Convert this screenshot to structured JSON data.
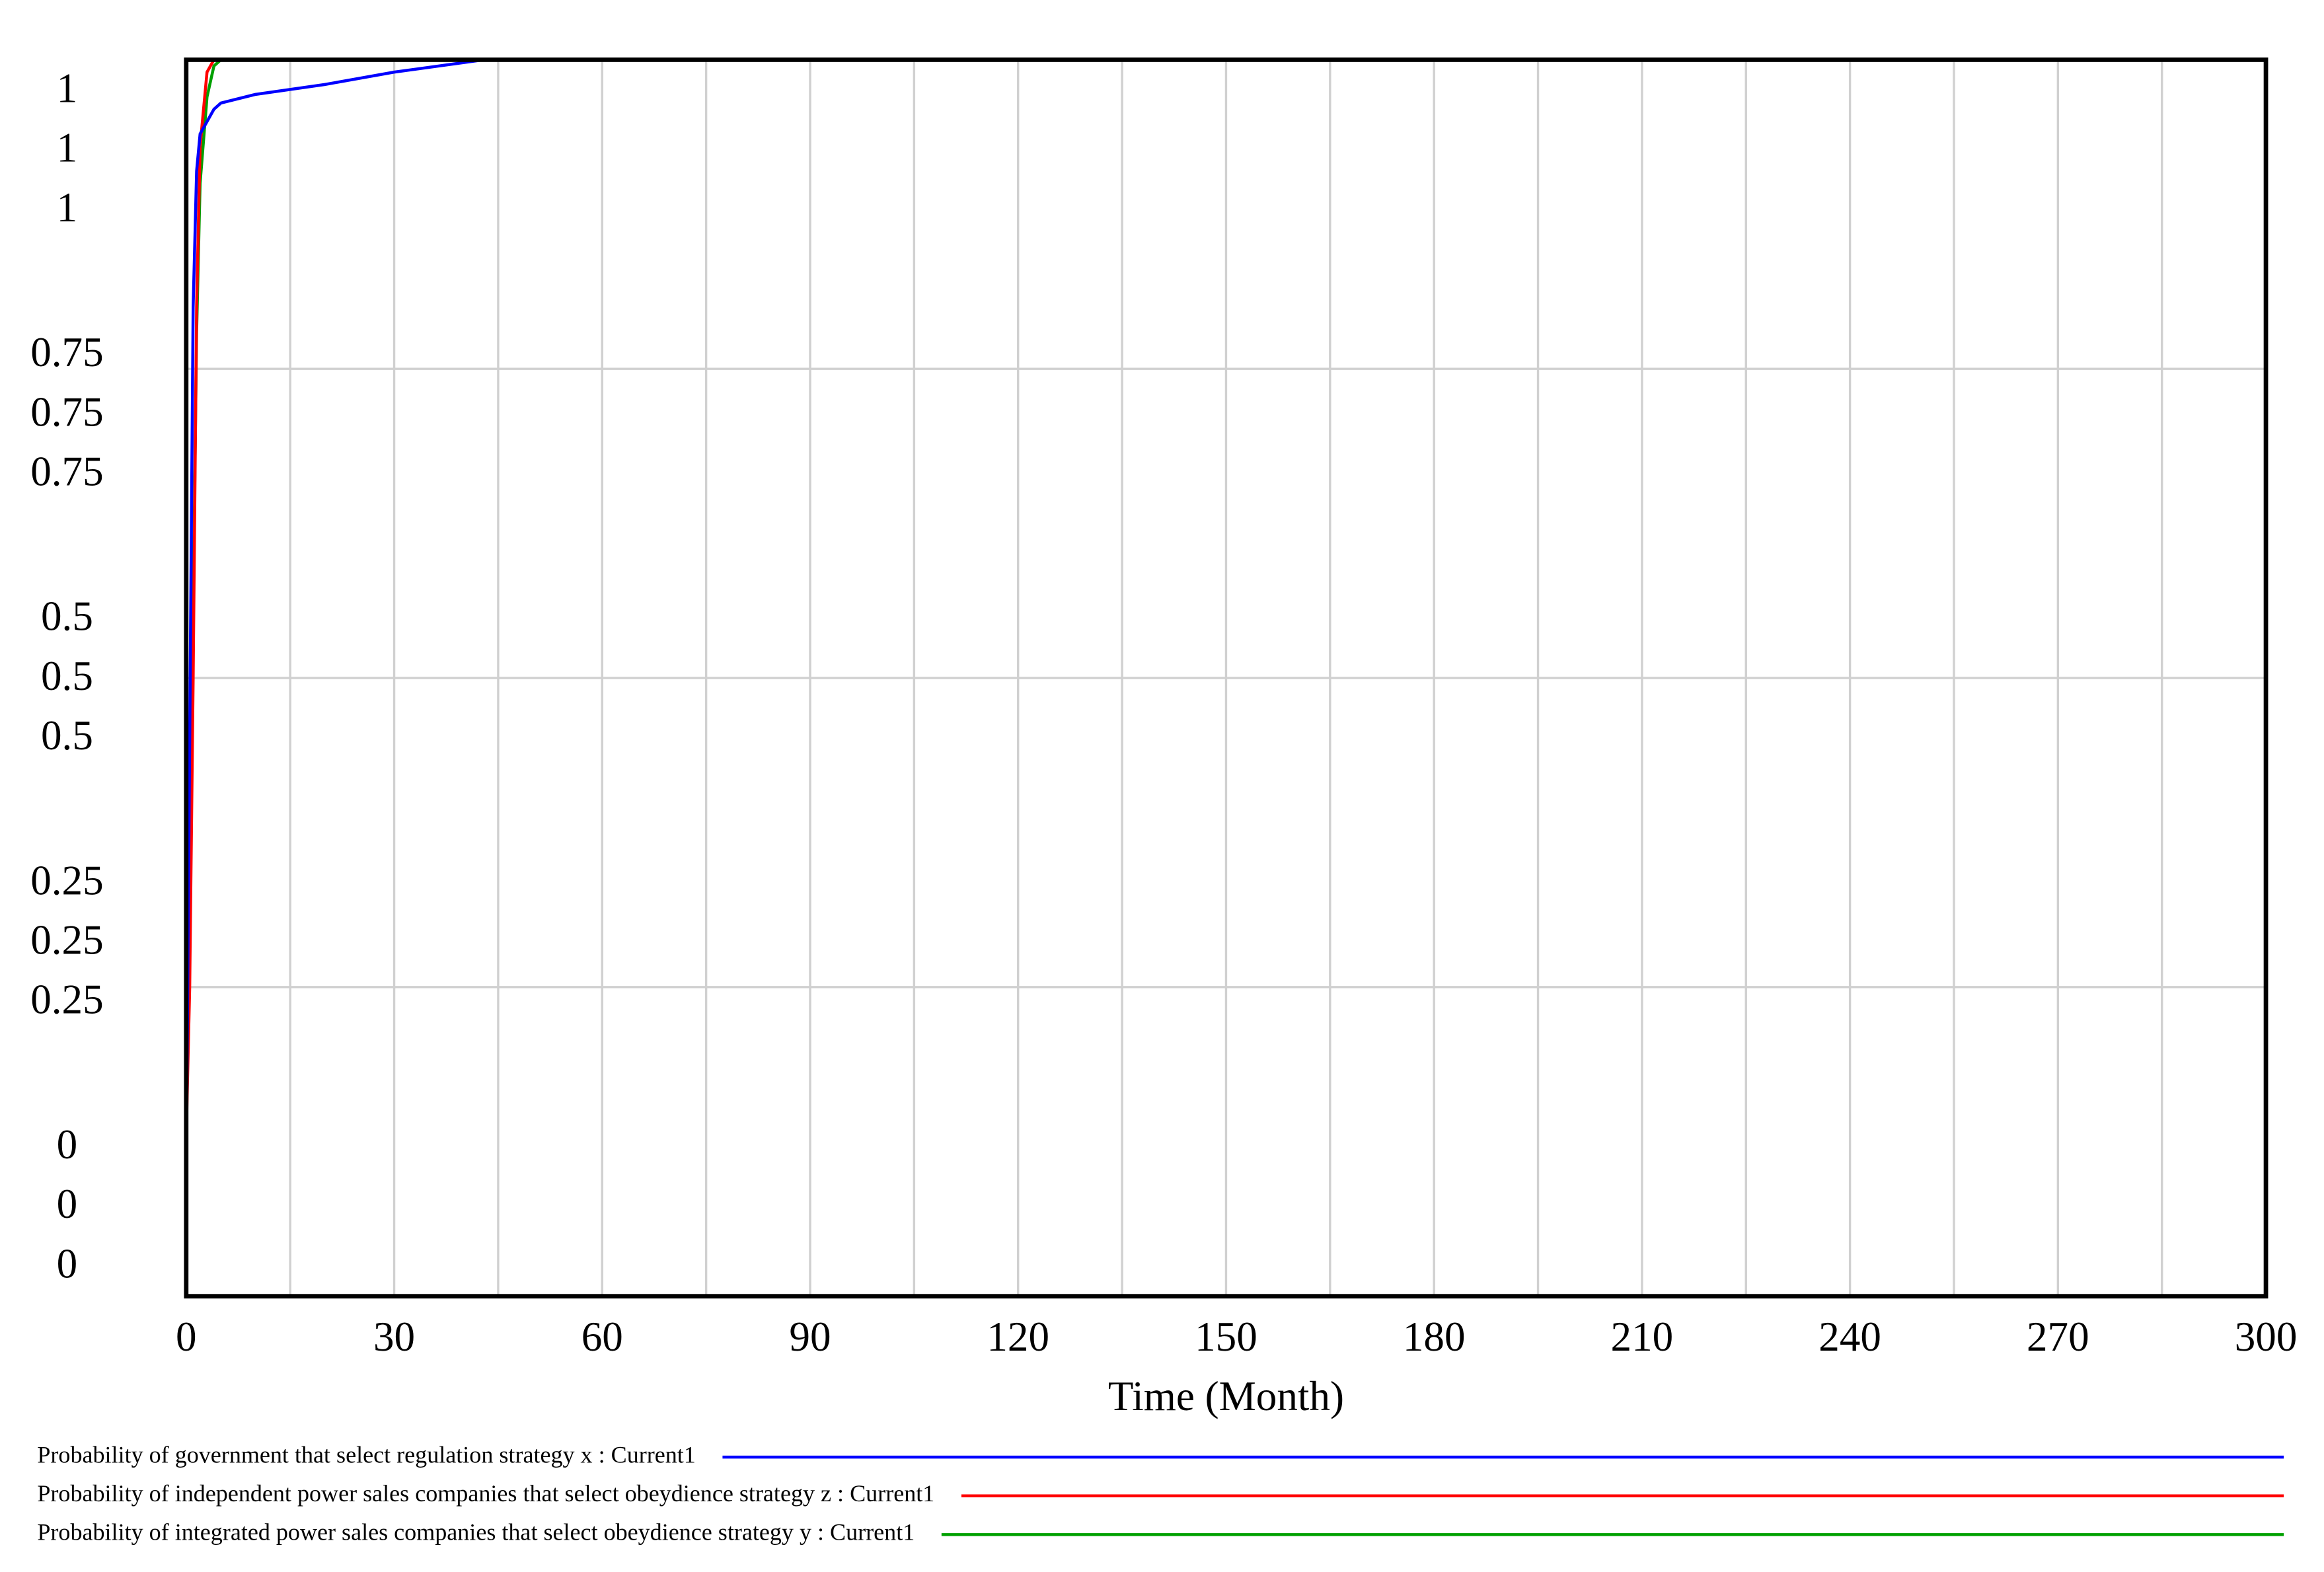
{
  "chart_data": {
    "type": "line",
    "x_label": "Time (Month)",
    "xlim": [
      0,
      300
    ],
    "xticks": [
      0,
      30,
      60,
      90,
      120,
      150,
      180,
      210,
      240,
      270,
      300
    ],
    "ylim": [
      0,
      1
    ],
    "grid": true,
    "x": [
      0,
      0.5,
      1,
      1.5,
      2,
      3,
      4,
      5,
      10,
      20,
      30,
      43,
      100,
      300
    ],
    "series": [
      {
        "name": "Probability of government that select regulation strategy x : Current1",
        "color": "#0000ff",
        "yticks": [
          0,
          0.25,
          0.5,
          0.75,
          1
        ],
        "values": [
          0.1,
          0.45,
          0.8,
          0.91,
          0.94,
          0.95,
          0.96,
          0.965,
          0.972,
          0.98,
          0.99,
          1,
          1,
          1
        ]
      },
      {
        "name": "Probability of independent power sales companies that select obeydience strategy z : Current1",
        "color": "#ff0000",
        "yticks": [
          0,
          0.25,
          0.5,
          0.75,
          1
        ],
        "values": [
          0.13,
          0.25,
          0.5,
          0.8,
          0.93,
          0.99,
          1,
          1,
          1,
          1,
          1,
          1,
          1,
          1
        ]
      },
      {
        "name": "Probability of integrated power sales companies that select obeydience strategy y : Current1",
        "color": "#00a000",
        "yticks": [
          0,
          0.25,
          0.5,
          0.75,
          1
        ],
        "values": [
          0.2,
          0.3,
          0.55,
          0.78,
          0.9,
          0.97,
          0.995,
          1,
          1,
          1,
          1,
          1,
          1,
          1
        ]
      }
    ]
  }
}
